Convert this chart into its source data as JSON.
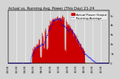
{
  "title": "Actual vs. Running Avg. Power (This Day) 21-24",
  "legend1": "Actual Power Output",
  "legend2": "Running Average",
  "bg_color": "#d4d4d4",
  "plot_bg": "#d4d4d4",
  "grid_color": "#ffffff",
  "bar_color": "#cc0000",
  "line_color": "#0000ee",
  "title_color": "#000000",
  "legend1_color": "#cc0000",
  "legend2_color": "#0000ee",
  "ylim": [
    0,
    5500
  ],
  "n_points": 288,
  "title_fontsize": 3.8,
  "legend_fontsize": 3.2,
  "tick_fontsize": 2.8,
  "ytick_labels": [
    "0",
    "1k",
    "2k",
    "3k",
    "4k",
    "5k"
  ],
  "ytick_vals": [
    0,
    1000,
    2000,
    3000,
    4000,
    5000
  ]
}
